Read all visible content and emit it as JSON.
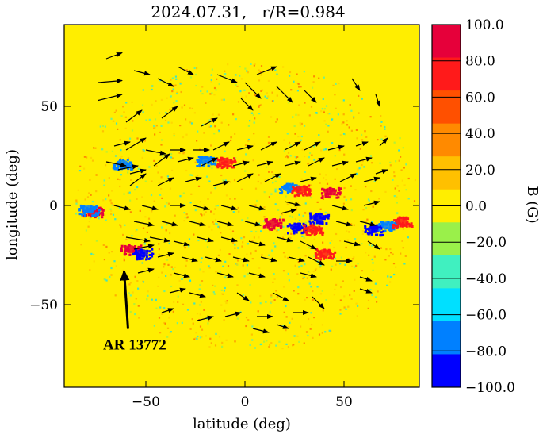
{
  "chart_data": {
    "type": "heatmap",
    "title": "2024.07.31,   r/R=0.984",
    "xlabel": "latitude (deg)",
    "ylabel": "longitude (deg)",
    "xlim": [
      -90,
      90
    ],
    "ylim": [
      -90,
      90
    ],
    "xticks": [
      -50,
      0,
      50
    ],
    "yticks": [
      50,
      0,
      -50
    ],
    "grid": false,
    "colorbar": {
      "label": "B (G)",
      "range": [
        -100,
        100
      ],
      "ticks": [
        "100.0",
        "80.0",
        "60.0",
        "40.0",
        "20.0",
        "0.0",
        "−20.0",
        "−40.0",
        "−60.0",
        "−80.0",
        "−100.0"
      ],
      "colormap": [
        "#0000ff",
        "#0080ff",
        "#00e0ff",
        "#40f0c0",
        "#9af04a",
        "#ffee00",
        "#ffc000",
        "#ff8a00",
        "#ff5000",
        "#ff1a1a",
        "#e6003a"
      ]
    },
    "background_color": "#ffee00",
    "magnetic_regions": [
      {
        "x": -77,
        "y": -3,
        "B": 100
      },
      {
        "x": -79,
        "y": -2,
        "B": -80
      },
      {
        "x": -62,
        "y": 21,
        "B": -90
      },
      {
        "x": -58,
        "y": -22,
        "B": 95
      },
      {
        "x": -52,
        "y": -24,
        "B": -95
      },
      {
        "x": -20,
        "y": 23,
        "B": -80
      },
      {
        "x": -10,
        "y": 22,
        "B": 70
      },
      {
        "x": 22,
        "y": 9,
        "B": -90
      },
      {
        "x": 28,
        "y": 8,
        "B": 80
      },
      {
        "x": 43,
        "y": 7,
        "B": 95
      },
      {
        "x": 14,
        "y": -9,
        "B": 90
      },
      {
        "x": 26,
        "y": -11,
        "B": -95
      },
      {
        "x": 37,
        "y": -6,
        "B": -100
      },
      {
        "x": 34,
        "y": -12,
        "B": 85
      },
      {
        "x": 40,
        "y": -24,
        "B": 70
      },
      {
        "x": 65,
        "y": -12,
        "B": -100
      },
      {
        "x": 72,
        "y": -10,
        "B": -90
      },
      {
        "x": 79,
        "y": -8,
        "B": 80
      }
    ],
    "flow_arrows": [
      [
        -70,
        74,
        -62,
        77
      ],
      [
        -74,
        62,
        -62,
        63
      ],
      [
        -74,
        53,
        -62,
        56
      ],
      [
        -56,
        68,
        -48,
        66
      ],
      [
        -44,
        64,
        -36,
        60
      ],
      [
        -34,
        70,
        -26,
        66
      ],
      [
        -14,
        66,
        -4,
        62
      ],
      [
        0,
        62,
        8,
        54
      ],
      [
        6,
        66,
        16,
        70
      ],
      [
        16,
        60,
        24,
        52
      ],
      [
        -2,
        54,
        4,
        48
      ],
      [
        30,
        58,
        36,
        52
      ],
      [
        54,
        64,
        58,
        58
      ],
      [
        66,
        56,
        68,
        50
      ],
      [
        -60,
        42,
        -52,
        48
      ],
      [
        -42,
        44,
        -34,
        50
      ],
      [
        -22,
        40,
        -14,
        44
      ],
      [
        -66,
        30,
        -58,
        32
      ],
      [
        -60,
        28,
        -50,
        34
      ],
      [
        -50,
        28,
        -40,
        26
      ],
      [
        -38,
        28,
        -30,
        28
      ],
      [
        -26,
        28,
        -18,
        28
      ],
      [
        -16,
        28,
        -8,
        32
      ],
      [
        -4,
        28,
        4,
        30
      ],
      [
        8,
        28,
        16,
        32
      ],
      [
        20,
        28,
        28,
        32
      ],
      [
        30,
        28,
        38,
        32
      ],
      [
        42,
        28,
        50,
        30
      ],
      [
        56,
        30,
        62,
        32
      ],
      [
        68,
        30,
        72,
        34
      ],
      [
        -70,
        22,
        -60,
        20
      ],
      [
        -64,
        18,
        -54,
        20
      ],
      [
        -58,
        16,
        -50,
        18
      ],
      [
        -46,
        20,
        -38,
        26
      ],
      [
        -34,
        22,
        -26,
        24
      ],
      [
        -22,
        20,
        -14,
        24
      ],
      [
        -6,
        20,
        2,
        22
      ],
      [
        6,
        20,
        14,
        22
      ],
      [
        20,
        20,
        28,
        22
      ],
      [
        32,
        20,
        40,
        24
      ],
      [
        44,
        20,
        52,
        22
      ],
      [
        56,
        22,
        64,
        24
      ],
      [
        66,
        16,
        72,
        18
      ],
      [
        -58,
        10,
        -50,
        16
      ],
      [
        -44,
        10,
        -36,
        14
      ],
      [
        -30,
        12,
        -22,
        14
      ],
      [
        -16,
        10,
        -8,
        12
      ],
      [
        -4,
        12,
        4,
        16
      ],
      [
        10,
        12,
        18,
        16
      ],
      [
        28,
        12,
        36,
        14
      ],
      [
        48,
        12,
        56,
        16
      ],
      [
        60,
        12,
        68,
        14
      ],
      [
        -66,
        0,
        -58,
        -2
      ],
      [
        -52,
        0,
        -44,
        -2
      ],
      [
        -38,
        0,
        -30,
        0
      ],
      [
        -26,
        0,
        -18,
        -2
      ],
      [
        -12,
        0,
        -4,
        -2
      ],
      [
        2,
        0,
        10,
        -2
      ],
      [
        20,
        2,
        28,
        0
      ],
      [
        44,
        0,
        52,
        -2
      ],
      [
        60,
        0,
        68,
        2
      ],
      [
        -56,
        -8,
        -46,
        -10
      ],
      [
        -42,
        -8,
        -34,
        -10
      ],
      [
        -28,
        -8,
        -20,
        -10
      ],
      [
        -14,
        -8,
        -6,
        -10
      ],
      [
        0,
        -8,
        8,
        -10
      ],
      [
        18,
        -4,
        26,
        -2
      ],
      [
        46,
        -8,
        54,
        -10
      ],
      [
        58,
        -8,
        66,
        -10
      ],
      [
        -60,
        -16,
        -48,
        -18
      ],
      [
        -48,
        -16,
        -38,
        -18
      ],
      [
        -36,
        -18,
        -28,
        -20
      ],
      [
        -24,
        -16,
        -16,
        -18
      ],
      [
        -12,
        -16,
        -4,
        -18
      ],
      [
        2,
        -18,
        10,
        -20
      ],
      [
        16,
        -16,
        24,
        -18
      ],
      [
        28,
        -18,
        36,
        -22
      ],
      [
        50,
        -18,
        58,
        -20
      ],
      [
        62,
        -18,
        68,
        -22
      ],
      [
        -56,
        -22,
        -46,
        -20
      ],
      [
        -44,
        -26,
        -36,
        -24
      ],
      [
        -32,
        -26,
        -24,
        -28
      ],
      [
        -20,
        -26,
        -12,
        -28
      ],
      [
        -6,
        -26,
        2,
        -28
      ],
      [
        8,
        -26,
        16,
        -28
      ],
      [
        22,
        -26,
        30,
        -28
      ],
      [
        32,
        -26,
        40,
        -30
      ],
      [
        46,
        -28,
        54,
        -28
      ],
      [
        -54,
        -34,
        -46,
        -32
      ],
      [
        -36,
        -34,
        -28,
        -36
      ],
      [
        -14,
        -34,
        -6,
        -36
      ],
      [
        2,
        -34,
        10,
        -36
      ],
      [
        28,
        -34,
        36,
        -36
      ],
      [
        58,
        -36,
        64,
        -38
      ],
      [
        -38,
        -44,
        -30,
        -42
      ],
      [
        -28,
        -44,
        -20,
        -46
      ],
      [
        -4,
        -44,
        2,
        -48
      ],
      [
        14,
        -44,
        22,
        -48
      ],
      [
        34,
        -46,
        40,
        -52
      ],
      [
        58,
        -42,
        64,
        -44
      ],
      [
        -42,
        -54,
        -36,
        -52
      ],
      [
        -24,
        -58,
        -16,
        -56
      ],
      [
        -10,
        -56,
        -2,
        -54
      ],
      [
        6,
        -56,
        14,
        -56
      ],
      [
        24,
        -54,
        32,
        -54
      ],
      [
        4,
        -62,
        12,
        -64
      ],
      [
        16,
        -60,
        22,
        -62
      ]
    ],
    "annotations": [
      {
        "text": "AR 13772",
        "x": -66,
        "y": -71,
        "arrow_to": [
          -61,
          -33
        ]
      }
    ]
  }
}
